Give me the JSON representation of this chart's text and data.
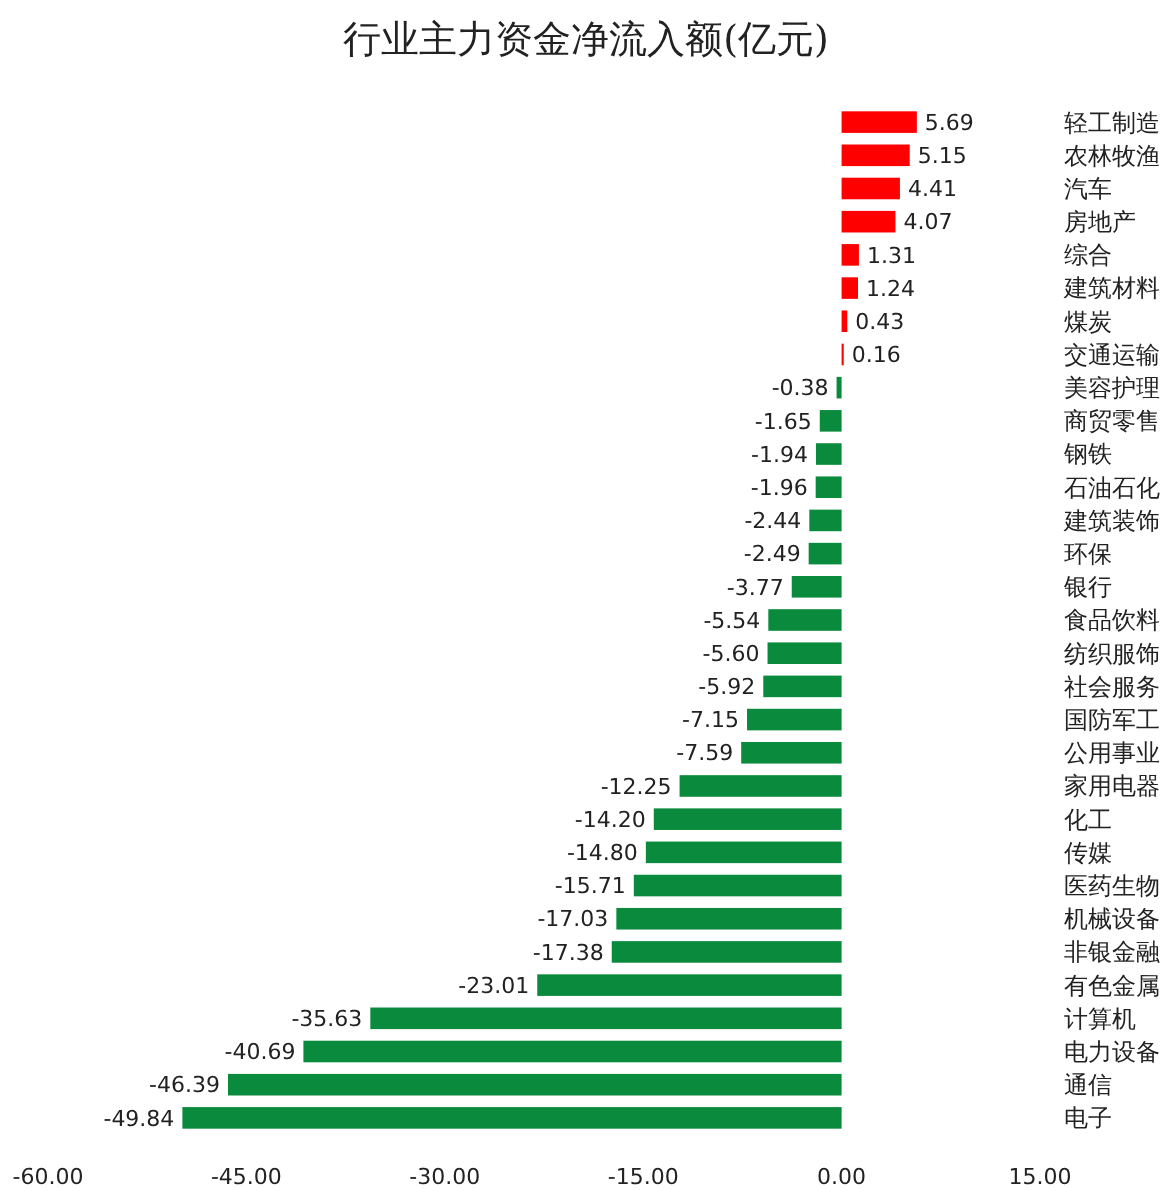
{
  "chart_data": {
    "type": "bar",
    "orientation": "horizontal",
    "title": "行业主力资金净流入额(亿元)",
    "categories": [
      "轻工制造",
      "农林牧渔",
      "汽车",
      "房地产",
      "综合",
      "建筑材料",
      "煤炭",
      "交通运输",
      "美容护理",
      "商贸零售",
      "钢铁",
      "石油石化",
      "建筑装饰",
      "环保",
      "银行",
      "食品饮料",
      "纺织服饰",
      "社会服务",
      "国防军工",
      "公用事业",
      "家用电器",
      "化工",
      "传媒",
      "医药生物",
      "机械设备",
      "非银金融",
      "有色金属",
      "计算机",
      "电力设备",
      "通信",
      "电子"
    ],
    "values": [
      5.69,
      5.15,
      4.41,
      4.07,
      1.31,
      1.24,
      0.43,
      0.16,
      -0.38,
      -1.65,
      -1.94,
      -1.96,
      -2.44,
      -2.49,
      -3.77,
      -5.54,
      -5.6,
      -5.92,
      -7.15,
      -7.59,
      -12.25,
      -14.2,
      -14.8,
      -15.71,
      -17.03,
      -17.38,
      -23.01,
      -35.63,
      -40.69,
      -46.39,
      -49.84
    ],
    "value_labels": [
      "5.69",
      "5.15",
      "4.41",
      "4.07",
      "1.31",
      "1.24",
      "0.43",
      "0.16",
      "-0.38",
      "-1.65",
      "-1.94",
      "-1.96",
      "-2.44",
      "-2.49",
      "-3.77",
      "-5.54",
      "-5.60",
      "-5.92",
      "-7.15",
      "-7.59",
      "-12.25",
      "-14.20",
      "-14.80",
      "-15.71",
      "-17.03",
      "-17.38",
      "-23.01",
      "-35.63",
      "-40.69",
      "-46.39",
      "-49.84"
    ],
    "colors": [
      "#ff0000",
      "#ff0000",
      "#ff0000",
      "#ff0000",
      "#ff0000",
      "#ff0000",
      "#ff0000",
      "#ff0000",
      "#0a8a3c",
      "#0a8a3c",
      "#0a8a3c",
      "#0a8a3c",
      "#0a8a3c",
      "#0a8a3c",
      "#0a8a3c",
      "#0a8a3c",
      "#0a8a3c",
      "#0a8a3c",
      "#0a8a3c",
      "#0a8a3c",
      "#0a8a3c",
      "#0a8a3c",
      "#0a8a3c",
      "#0a8a3c",
      "#0a8a3c",
      "#0a8a3c",
      "#0a8a3c",
      "#0a8a3c",
      "#0a8a3c",
      "#0a8a3c",
      "#0a8a3c"
    ],
    "xlim": [
      -60,
      15
    ],
    "xticks": [
      {
        "value": -60,
        "label": "-60.00"
      },
      {
        "value": -45,
        "label": "-45.00"
      },
      {
        "value": -30,
        "label": "-30.00"
      },
      {
        "value": -15,
        "label": "-15.00"
      },
      {
        "value": 0,
        "label": "0.00"
      },
      {
        "value": 15,
        "label": "15.00"
      }
    ],
    "grid": false
  }
}
